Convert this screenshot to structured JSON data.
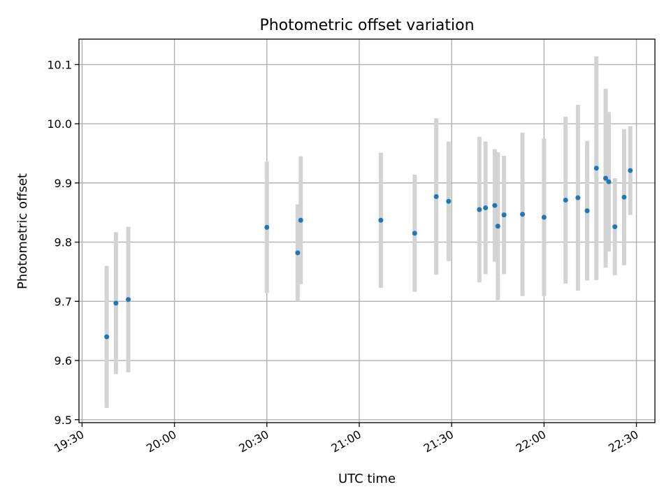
{
  "chart_data": {
    "type": "scatter",
    "title": "Photometric offset variation",
    "xlabel": "UTC time",
    "ylabel": "Photometric offset",
    "grid": true,
    "xlim": [
      "19:29",
      "22:36"
    ],
    "ylim": [
      9.495,
      10.143
    ],
    "xticks": [
      "19:30",
      "20:00",
      "20:30",
      "21:00",
      "21:30",
      "22:00",
      "22:30"
    ],
    "yticks": [
      9.5,
      9.6,
      9.7,
      9.8,
      9.9,
      10.0,
      10.1
    ],
    "marker_color": "#1f77b4",
    "errorbar_color": "#d3d3d3",
    "points": [
      {
        "x": "19:38",
        "y": 9.64,
        "err": 0.12
      },
      {
        "x": "19:41",
        "y": 9.697,
        "err": 0.12
      },
      {
        "x": "19:45",
        "y": 9.703,
        "err": 0.123
      },
      {
        "x": "20:30",
        "y": 9.825,
        "err": 0.111
      },
      {
        "x": "20:40",
        "y": 9.782,
        "err": 0.082
      },
      {
        "x": "20:41",
        "y": 9.837,
        "err": 0.108
      },
      {
        "x": "21:07",
        "y": 9.837,
        "err": 0.114
      },
      {
        "x": "21:18",
        "y": 9.815,
        "err": 0.099
      },
      {
        "x": "21:25",
        "y": 9.877,
        "err": 0.132
      },
      {
        "x": "21:29",
        "y": 9.869,
        "err": 0.101
      },
      {
        "x": "21:39",
        "y": 9.855,
        "err": 0.123
      },
      {
        "x": "21:41",
        "y": 9.858,
        "err": 0.112
      },
      {
        "x": "21:44",
        "y": 9.862,
        "err": 0.095
      },
      {
        "x": "21:45",
        "y": 9.827,
        "err": 0.125
      },
      {
        "x": "21:47",
        "y": 9.846,
        "err": 0.1
      },
      {
        "x": "21:53",
        "y": 9.847,
        "err": 0.138
      },
      {
        "x": "22:00",
        "y": 9.842,
        "err": 0.133
      },
      {
        "x": "22:07",
        "y": 9.871,
        "err": 0.141
      },
      {
        "x": "22:11",
        "y": 9.875,
        "err": 0.157
      },
      {
        "x": "22:14",
        "y": 9.853,
        "err": 0.118
      },
      {
        "x": "22:17",
        "y": 9.925,
        "err": 0.189
      },
      {
        "x": "22:20",
        "y": 9.908,
        "err": 0.151
      },
      {
        "x": "22:21",
        "y": 9.902,
        "err": 0.118
      },
      {
        "x": "22:23",
        "y": 9.826,
        "err": 0.082
      },
      {
        "x": "22:26",
        "y": 9.876,
        "err": 0.115
      },
      {
        "x": "22:28",
        "y": 9.921,
        "err": 0.075
      }
    ]
  }
}
